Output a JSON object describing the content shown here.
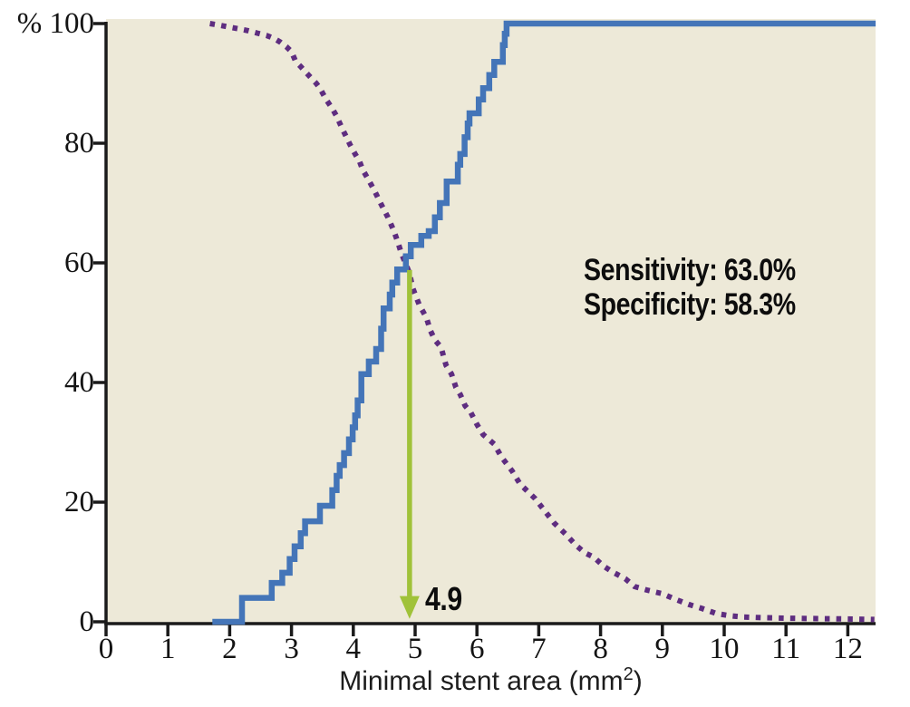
{
  "chart_data": {
    "type": "line",
    "title": "",
    "xlabel_parts": {
      "prefix": "Minimal stent area (mm",
      "sup": "2",
      "suffix": ")"
    },
    "xlim": [
      0,
      12.45
    ],
    "ylim": [
      0,
      100
    ],
    "x_ticks": [
      0,
      1,
      2,
      3,
      4,
      5,
      6,
      7,
      8,
      9,
      10,
      11,
      12
    ],
    "y_ticks": [
      0,
      20,
      40,
      60,
      80,
      100
    ],
    "y_tick_labels": [
      "0",
      "20",
      "40",
      "60",
      "80",
      "% 100"
    ],
    "grid": "off",
    "legend": "none",
    "annotation": {
      "line1": "Sensitivity: 63.0%",
      "line2": "Specificity: 58.3%"
    },
    "cutoff": {
      "x": 4.91,
      "label": "4.9",
      "arrow_top_pct": 58.8,
      "arrow_head_base_pct": 4.3,
      "arrow_tip_pct": 0.5
    },
    "series": [
      {
        "name": "sensitivity-step-curve",
        "style": "step-solid",
        "color": "#4475b8",
        "start": [
          1.72,
          0
        ],
        "steps": [
          [
            2.2,
            4
          ],
          [
            2.68,
            6.5
          ],
          [
            2.85,
            8.2
          ],
          [
            2.97,
            10.5
          ],
          [
            3.05,
            12.6
          ],
          [
            3.15,
            14.8
          ],
          [
            3.22,
            16.8
          ],
          [
            3.46,
            19.4
          ],
          [
            3.66,
            22
          ],
          [
            3.73,
            24.4
          ],
          [
            3.78,
            26.2
          ],
          [
            3.85,
            28.2
          ],
          [
            3.93,
            30.5
          ],
          [
            3.99,
            32.5
          ],
          [
            4.03,
            34.5
          ],
          [
            4.07,
            37
          ],
          [
            4.13,
            41.4
          ],
          [
            4.25,
            43.5
          ],
          [
            4.37,
            45.6
          ],
          [
            4.45,
            49
          ],
          [
            4.49,
            52.4
          ],
          [
            4.59,
            54.7
          ],
          [
            4.63,
            56.7
          ],
          [
            4.71,
            58.9
          ],
          [
            4.85,
            61.1
          ],
          [
            4.93,
            63
          ],
          [
            5.1,
            64.5
          ],
          [
            5.22,
            65.3
          ],
          [
            5.32,
            67.6
          ],
          [
            5.4,
            70
          ],
          [
            5.51,
            73.6
          ],
          [
            5.69,
            76.4
          ],
          [
            5.73,
            78.2
          ],
          [
            5.8,
            81
          ],
          [
            5.85,
            83.3
          ],
          [
            5.88,
            85
          ],
          [
            6.03,
            87.3
          ],
          [
            6.1,
            89.2
          ],
          [
            6.2,
            91.4
          ],
          [
            6.28,
            93.6
          ],
          [
            6.42,
            96.4
          ],
          [
            6.45,
            98.3
          ],
          [
            6.48,
            100
          ]
        ],
        "end": [
          12.45,
          100
        ]
      },
      {
        "name": "specificity-dotted-curve",
        "style": "dotted",
        "color": "#5e2d80",
        "points": [
          [
            1.68,
            100
          ],
          [
            1.85,
            99.7
          ],
          [
            2.0,
            99.4
          ],
          [
            2.15,
            99.1
          ],
          [
            2.3,
            98.8
          ],
          [
            2.45,
            98.4
          ],
          [
            2.6,
            98
          ],
          [
            2.72,
            97.5
          ],
          [
            2.82,
            96.9
          ],
          [
            2.92,
            96.1
          ],
          [
            3.0,
            95.3
          ],
          [
            3.07,
            93.6
          ],
          [
            3.15,
            92.8
          ],
          [
            3.22,
            92
          ],
          [
            3.31,
            91
          ],
          [
            3.4,
            90
          ],
          [
            3.46,
            89.2
          ],
          [
            3.56,
            87.3
          ],
          [
            3.66,
            85.8
          ],
          [
            3.73,
            84.5
          ],
          [
            3.81,
            82.7
          ],
          [
            3.88,
            81.2
          ],
          [
            3.95,
            79.7
          ],
          [
            4.03,
            78.2
          ],
          [
            4.1,
            77
          ],
          [
            4.15,
            75.6
          ],
          [
            4.25,
            73.8
          ],
          [
            4.35,
            71.9
          ],
          [
            4.45,
            69.8
          ],
          [
            4.56,
            67.6
          ],
          [
            4.65,
            65.5
          ],
          [
            4.72,
            63.5
          ],
          [
            4.78,
            61.5
          ],
          [
            4.85,
            59.8
          ],
          [
            4.91,
            58.2
          ],
          [
            4.96,
            55.8
          ],
          [
            5.07,
            52.9
          ],
          [
            5.18,
            50.9
          ],
          [
            5.25,
            48.6
          ],
          [
            5.32,
            47.1
          ],
          [
            5.42,
            45.9
          ],
          [
            5.5,
            42.9
          ],
          [
            5.59,
            41.4
          ],
          [
            5.66,
            39.2
          ],
          [
            5.73,
            38
          ],
          [
            5.81,
            36.1
          ],
          [
            5.9,
            35
          ],
          [
            6.0,
            33
          ],
          [
            6.1,
            31.3
          ],
          [
            6.28,
            29.7
          ],
          [
            6.4,
            27.5
          ],
          [
            6.57,
            25.2
          ],
          [
            6.7,
            23
          ],
          [
            6.8,
            22
          ],
          [
            6.94,
            20.6
          ],
          [
            7.1,
            18.5
          ],
          [
            7.25,
            16.5
          ],
          [
            7.45,
            14.5
          ],
          [
            7.6,
            12.8
          ],
          [
            7.75,
            11.5
          ],
          [
            7.89,
            10.8
          ],
          [
            8.05,
            9.3
          ],
          [
            8.2,
            8.3
          ],
          [
            8.4,
            7.2
          ],
          [
            8.55,
            5.9
          ],
          [
            8.75,
            5.3
          ],
          [
            9.0,
            4.7
          ],
          [
            9.2,
            3.8
          ],
          [
            9.43,
            2.9
          ],
          [
            9.65,
            2.2
          ],
          [
            9.87,
            1.4
          ],
          [
            10.1,
            1.0
          ],
          [
            10.3,
            0.8
          ],
          [
            10.6,
            0.7
          ],
          [
            11.0,
            0.6
          ],
          [
            11.4,
            0.55
          ],
          [
            11.8,
            0.5
          ],
          [
            12.1,
            0.45
          ],
          [
            12.43,
            0.4
          ]
        ]
      }
    ],
    "colors": {
      "plot_bg": "#ede9d8",
      "axis": "#1a1a1a",
      "arrow": "#a0c239",
      "text": "#0d0d0d"
    }
  }
}
